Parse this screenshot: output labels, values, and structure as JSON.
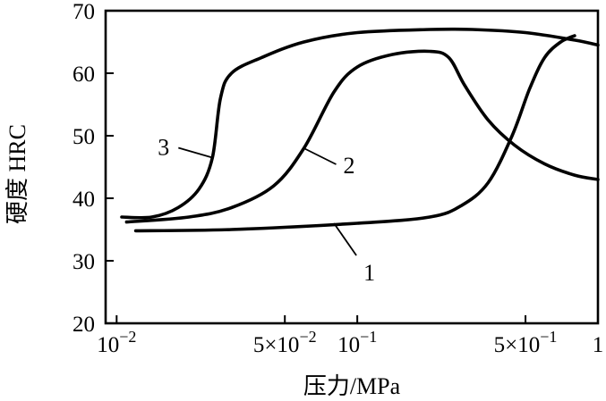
{
  "chart_data": {
    "type": "line",
    "title": "",
    "xlabel": "压力/MPa",
    "ylabel": "硬度  HRC",
    "x_scale": "log",
    "xlim": [
      0.009,
      1.0
    ],
    "ylim": [
      20,
      70
    ],
    "grid": false,
    "x_ticks": [
      {
        "value": 0.01,
        "label": "10",
        "exp": "−2"
      },
      {
        "value": 0.05,
        "label": "5×10",
        "exp": "−2"
      },
      {
        "value": 0.1,
        "label": "10",
        "exp": "−1"
      },
      {
        "value": 0.5,
        "label": "5×10",
        "exp": "−1"
      },
      {
        "value": 1.0,
        "label": "1",
        "exp": ""
      }
    ],
    "y_ticks": [
      20,
      30,
      40,
      50,
      60,
      70
    ],
    "series": [
      {
        "name": "1",
        "x": [
          0.012,
          0.03,
          0.1,
          0.2,
          0.27,
          0.35,
          0.44,
          0.52,
          0.6,
          0.7,
          0.8
        ],
        "y": [
          34.8,
          35.0,
          36.0,
          37.0,
          38.8,
          42.5,
          50.0,
          57.5,
          62.5,
          65.0,
          66.0
        ]
      },
      {
        "name": "2",
        "x": [
          0.011,
          0.02,
          0.03,
          0.045,
          0.06,
          0.08,
          0.1,
          0.14,
          0.2,
          0.24,
          0.28,
          0.35,
          0.45,
          0.6,
          0.8,
          1.0
        ],
        "y": [
          36.2,
          37.0,
          38.5,
          42.0,
          48.0,
          57.0,
          61.0,
          63.0,
          63.5,
          62.5,
          58.0,
          52.5,
          48.5,
          45.5,
          43.7,
          43.0
        ]
      },
      {
        "name": "3",
        "x": [
          0.0105,
          0.014,
          0.018,
          0.022,
          0.025,
          0.027,
          0.03,
          0.04,
          0.06,
          0.1,
          0.2,
          0.3,
          0.5,
          0.8,
          1.0
        ],
        "y": [
          37.0,
          37.0,
          38.5,
          41.5,
          46.5,
          56.0,
          60.0,
          62.5,
          65.0,
          66.5,
          67.0,
          67.0,
          66.5,
          65.3,
          64.5
        ]
      }
    ],
    "curve_labels": [
      {
        "text": "1",
        "series": "1",
        "x": 0.08,
        "y": 36.0
      },
      {
        "text": "2",
        "series": "2",
        "x": 0.06,
        "y": 48.0
      },
      {
        "text": "3",
        "series": "3",
        "x": 0.025,
        "y": 46.5
      }
    ]
  }
}
